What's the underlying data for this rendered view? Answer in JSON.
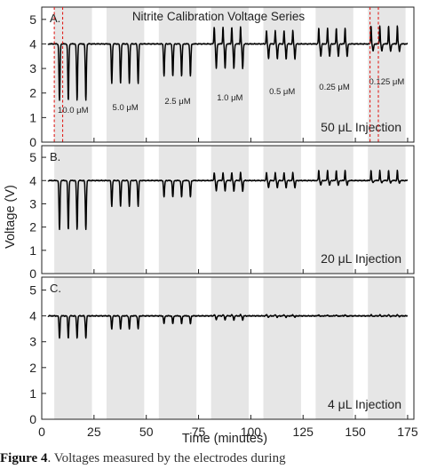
{
  "chart_data": {
    "type": "line",
    "title": "Nitrite Calibration Voltage Series",
    "xlabel": "Time (minutes)",
    "ylabel": "Voltage (V)",
    "xlim": [
      0,
      178
    ],
    "ylim": [
      0,
      5.5
    ],
    "x_ticks": [
      "0",
      "25",
      "50",
      "75",
      "100",
      "125",
      "150",
      "175"
    ],
    "y_ticks": [
      "0",
      "1",
      "2",
      "3",
      "4",
      "5"
    ],
    "baseline_voltage": 4.0,
    "shaded_segments": [
      [
        6,
        24
      ],
      [
        31,
        49
      ],
      [
        56,
        74
      ],
      [
        81,
        99
      ],
      [
        106,
        124
      ],
      [
        131,
        149
      ],
      [
        156,
        174
      ]
    ],
    "concentration_labels": [
      "10.0 μM",
      "5.0 μM",
      "2.5 μM",
      "1.0 μM",
      "0.5 μM",
      "0.25 μM",
      "0.125 μM"
    ],
    "marker_lines": [
      6,
      10,
      157,
      161
    ],
    "marker_color": "#e0201c",
    "line_color": "#000000",
    "shade_color": "#e6e6e6",
    "panels": [
      {
        "letter": "A.",
        "injection_label": "50 μL Injection",
        "dip_minimum": [
          1.7,
          2.4,
          2.7,
          3.0,
          3.4,
          3.5,
          3.7
        ],
        "spike_maximum": [
          4.0,
          4.0,
          4.0,
          4.7,
          4.55,
          4.65,
          4.75
        ]
      },
      {
        "letter": "B.",
        "injection_label": "20 μL Injection",
        "dip_minimum": [
          1.9,
          2.9,
          3.3,
          3.55,
          3.7,
          3.8,
          3.9
        ],
        "spike_maximum": [
          4.0,
          4.0,
          4.0,
          4.35,
          4.35,
          4.45,
          4.45
        ]
      },
      {
        "letter": "C.",
        "injection_label": "4 μL Injection",
        "dip_minimum": [
          3.15,
          3.5,
          3.7,
          3.85,
          3.95,
          3.98,
          3.98
        ],
        "spike_maximum": [
          4.0,
          4.0,
          4.0,
          4.05,
          4.05,
          4.05,
          4.05
        ]
      }
    ]
  },
  "caption": {
    "bold": "Figure 4",
    "rest": ". Voltages measured by the electrodes during"
  }
}
